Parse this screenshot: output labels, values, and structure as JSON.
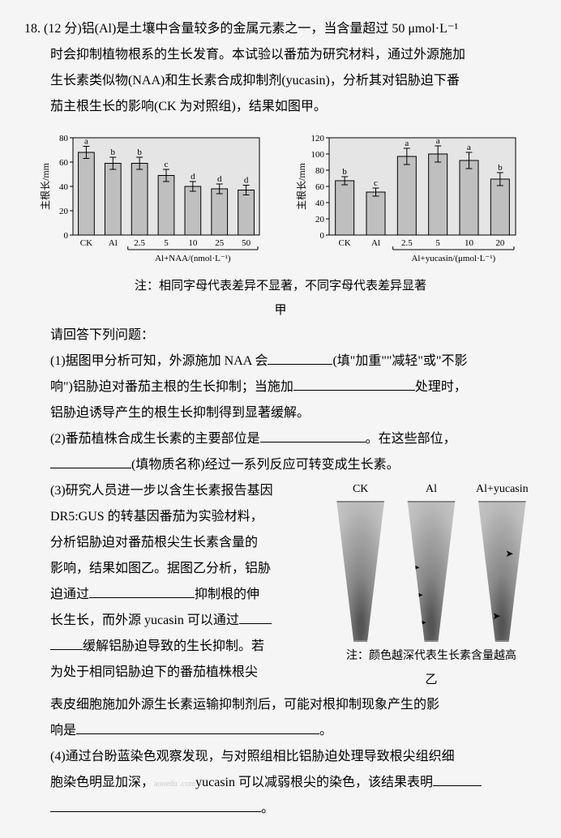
{
  "q": {
    "num": "18.",
    "pts": "(12 分)",
    "intro_l1": "铝(Al)是土壤中含量较多的金属元素之一，当含量超过 50 μmol·L⁻¹",
    "intro_l2": "时会抑制植物根系的生长发育。本试验以番茄为研究材料，通过外源施加",
    "intro_l3": "生长素类似物(NAA)和生长素合成抑制剂(yucasin)，分析其对铝胁迫下番",
    "intro_l4": "茄主根生长的影响(CK 为对照组)，结果如图甲。"
  },
  "chart_left": {
    "ylabel": "主根长/mm",
    "ylim": [
      0,
      80
    ],
    "ytick_step": 20,
    "categories": [
      "CK",
      "Al",
      "2.5",
      "5",
      "10",
      "25",
      "50"
    ],
    "values": [
      68,
      59,
      59,
      49,
      40,
      38,
      37
    ],
    "errors": [
      5,
      5,
      5,
      5,
      4,
      4,
      4
    ],
    "letters": [
      "a",
      "b",
      "b",
      "c",
      "d",
      "d",
      "d"
    ],
    "xlabel_bracket": "Al+NAA/(nmol·L⁻¹)",
    "bar_fill": "#bfbfbf",
    "bar_stroke": "#000",
    "bg": "#e5e5e5",
    "font": 11
  },
  "chart_right": {
    "ylabel": "主根长/mm",
    "ylim": [
      0,
      120
    ],
    "ytick_step": 20,
    "categories": [
      "CK",
      "Al",
      "2.5",
      "5",
      "10",
      "20"
    ],
    "values": [
      67,
      53,
      97,
      100,
      92,
      69
    ],
    "errors": [
      5,
      5,
      10,
      10,
      10,
      8
    ],
    "letters": [
      "b",
      "c",
      "a",
      "a",
      "a",
      "b"
    ],
    "xlabel_bracket": "Al+yucasin/(μmol·L⁻¹)",
    "bar_fill": "#bfbfbf",
    "bar_stroke": "#000",
    "bg": "#e5e5e5",
    "font": 11
  },
  "chart_note": "注：相同字母代表差异不显著，不同字母代表差异显著",
  "fig_label": "甲",
  "prompt": "请回答下列问题：",
  "p1": {
    "a": "(1)据图甲分析可知，外源施加 NAA 会",
    "b": "(填\"加重\"\"减轻\"或\"不影",
    "c": "响\")铝胁迫对番茄主根的生长抑制；当施加",
    "d": "处理时，",
    "e": "铝胁迫诱导产生的根生长抑制得到显著缓解。"
  },
  "p2": {
    "a": "(2)番茄植株合成生长素的主要部位是",
    "b": "。在这些部位，",
    "c": "(填物质名称)经过一系列反应可转变成生长素。"
  },
  "p3": {
    "a": "(3)研究人员进一步以含生长素报告基因",
    "b": "DR5:GUS 的转基因番茄为实验材料，",
    "c": "分析铝胁迫对番茄根尖生长素含量的",
    "d": "影响，结果如图乙。据图乙分析，铝胁",
    "e": "迫通过",
    "f": "抑制根的伸",
    "g": "长生长，而外源 yucasin 可以通过",
    "h": "缓解铝胁迫导致的生长抑制。若",
    "i": "为处于相同铝胁迫下的番茄植株根尖",
    "j": "表皮细胞施加外源生长素运输抑制剂后，可能对根抑制现象产生的影",
    "k": "响是",
    "l": "。"
  },
  "fig3": {
    "labels": [
      "CK",
      "Al",
      "Al+yucasin"
    ],
    "note": "注：颜色越深代表生长素含量越高",
    "cap": "乙"
  },
  "p4": {
    "a": "(4)通过台盼蓝染色观察发现，与对照组相比铝胁迫处理导致根尖组织细",
    "b": "胞染色明显加深，",
    "wm": "aooedu .com",
    "c": "yucasin 可以减弱根尖的染色，该结果表明",
    "d": "。"
  }
}
